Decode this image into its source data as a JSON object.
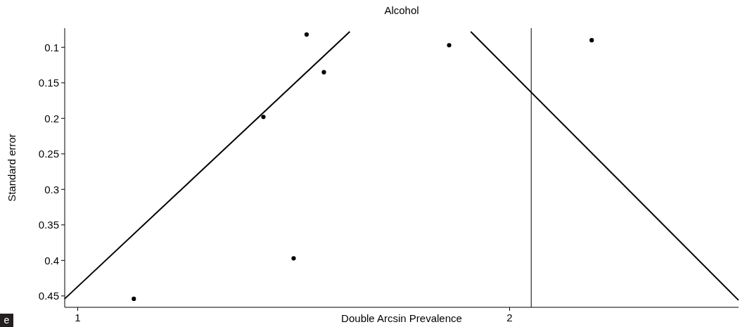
{
  "chart_data": {
    "type": "scatter",
    "title": "Alcohol",
    "xlabel": "Double Arcsin Prevalence",
    "ylabel": "Standard error",
    "xlim": [
      0.97,
      2.53
    ],
    "xticks": [
      1,
      2
    ],
    "ylim": [
      0.466,
      0.073
    ],
    "yticks": [
      0.1,
      0.15,
      0.2,
      0.25,
      0.3,
      0.35,
      0.4,
      0.45
    ],
    "grid": false,
    "annotations": [
      "e"
    ],
    "ref_lines": [
      {
        "axis": "x",
        "value": 2.05,
        "color": "#000000"
      }
    ],
    "series": [
      {
        "color": "#000000",
        "x": [
          1.53,
          1.57,
          1.43,
          1.5,
          1.13,
          1.86,
          2.19
        ],
        "values": [
          0.082,
          0.135,
          0.198,
          0.397,
          0.454,
          0.097,
          0.09
        ]
      },
      {
        "type": "line",
        "color": "#000000",
        "x": [
          0.97,
          1.63
        ],
        "values": [
          0.454,
          0.078
        ]
      },
      {
        "type": "line",
        "color": "#000000",
        "x": [
          1.91,
          2.53
        ],
        "values": [
          0.078,
          0.456
        ]
      }
    ]
  }
}
